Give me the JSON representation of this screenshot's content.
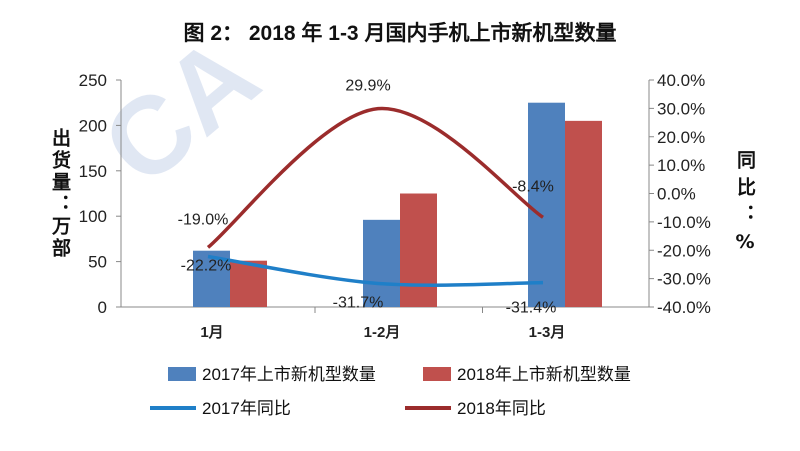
{
  "chart_data": {
    "type": "bar+line",
    "title": "图 2：  2018 年 1-3 月国内手机上市新机型数量",
    "categories": [
      "1月",
      "1-2月",
      "1-3月"
    ],
    "ylabel_left": "出货量：万部",
    "ylabel_right": "同比：%",
    "ylim_left": [
      0,
      250
    ],
    "yticks_left": [
      "0",
      "50",
      "100",
      "150",
      "200",
      "250"
    ],
    "ylim_right": [
      -40,
      40
    ],
    "yticks_right": [
      "-40.0%",
      "-30.0%",
      "-20.0%",
      "-10.0%",
      "0.0%",
      "10.0%",
      "20.0%",
      "30.0%",
      "40.0%"
    ],
    "grid": false,
    "legend_position": "bottom",
    "series": [
      {
        "name": "2017年上市新机型数量",
        "type": "bar",
        "axis": "left",
        "color": "#4f81bd",
        "values": [
          62,
          96,
          225
        ]
      },
      {
        "name": "2018年上市新机型数量",
        "type": "bar",
        "axis": "left",
        "color": "#c0504d",
        "values": [
          51,
          125,
          205
        ]
      },
      {
        "name": "2017年同比",
        "type": "line",
        "axis": "right",
        "color": "#1f7fc8",
        "values": [
          -22.2,
          -31.7,
          -31.4
        ],
        "labels": [
          "-22.2%",
          "-31.7%",
          "-31.4%"
        ]
      },
      {
        "name": "2018年同比",
        "type": "line",
        "axis": "right",
        "color": "#9b2c2c",
        "values": [
          -19.0,
          29.9,
          -8.4
        ],
        "labels": [
          "-19.0%",
          "29.9%",
          "-8.4%"
        ]
      }
    ]
  }
}
